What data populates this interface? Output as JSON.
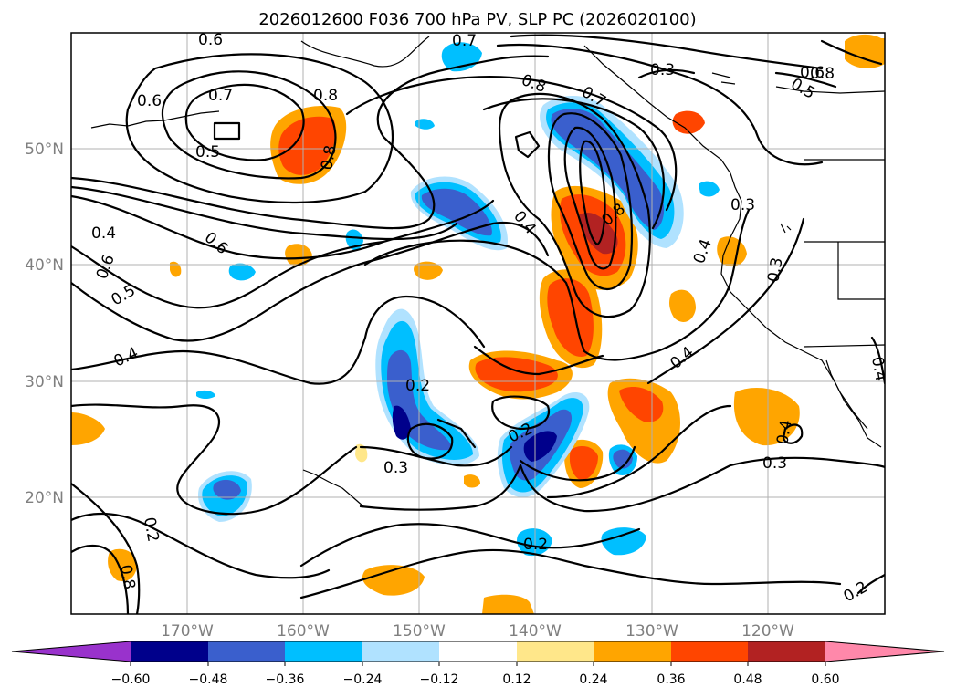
{
  "title": "2026012600 F036 700 hPa PV, SLP PC (2026020100)",
  "axes": {
    "lon_ticks": [
      "170°W",
      "160°W",
      "150°W",
      "140°W",
      "130°W",
      "120°W"
    ],
    "lat_ticks": [
      "50°N",
      "40°N",
      "30°N",
      "20°N"
    ]
  },
  "colorbar": {
    "ticks": [
      "−0.60",
      "−0.48",
      "−0.36",
      "−0.24",
      "−0.12",
      "0.12",
      "0.24",
      "0.36",
      "0.48",
      "0.60"
    ],
    "colors": [
      "#9932cc",
      "#00008b",
      "#3a5fcd",
      "#00bfff",
      "#b0e2ff",
      "#ffffff",
      "#ffe78a",
      "#ffa500",
      "#ff4500",
      "#b22222",
      "#ff88aa"
    ]
  },
  "contour_labels": [
    "0.6",
    "0.7",
    "0.8",
    "0.6",
    "0.7",
    "0.8",
    "0.5",
    "0.8",
    "0.7",
    "0.8",
    "0.3",
    "0.6",
    "0.5",
    "0.4",
    "0.6",
    "0.5",
    "0.6",
    "0.4",
    "0.8",
    "0.4",
    "0.3",
    "0.3",
    "0.4",
    "0.4",
    "0.2",
    "0.3",
    "0.2",
    "0.4",
    "0.3",
    "0.2",
    "0.2",
    "0.8",
    "0.2",
    "0.4"
  ],
  "chart_data": {
    "type": "heatmap",
    "title": "2026012600 F036 700 hPa PV, SLP PC (2026020100)",
    "xlabel": "",
    "ylabel": "",
    "x_tick_labels": [
      "170°W",
      "160°W",
      "150°W",
      "140°W",
      "130°W",
      "120°W"
    ],
    "y_tick_labels": [
      "50°N",
      "40°N",
      "30°N",
      "20°N"
    ],
    "xlim": [
      -180,
      -110
    ],
    "ylim": [
      10,
      60
    ],
    "grid": true,
    "colorbar_levels": [
      -0.6,
      -0.48,
      -0.36,
      -0.24,
      -0.12,
      0.12,
      0.24,
      0.36,
      0.48,
      0.6
    ],
    "filled_anomalies": [
      {
        "lon": -160,
        "lat": 51,
        "value": 0.4
      },
      {
        "lon": -136,
        "lat": 43,
        "value": 0.5
      },
      {
        "lon": -135,
        "lat": 35,
        "value": 0.45
      },
      {
        "lon": -141,
        "lat": 30.5,
        "value": 0.4
      },
      {
        "lon": -131,
        "lat": 29,
        "value": 0.4
      },
      {
        "lon": -135,
        "lat": 22.5,
        "value": 0.4
      },
      {
        "lon": -130,
        "lat": 50,
        "value": -0.45
      },
      {
        "lon": -147,
        "lat": 45,
        "value": -0.45
      },
      {
        "lon": -150,
        "lat": 28,
        "value": -0.55
      },
      {
        "lon": -138,
        "lat": 24,
        "value": -0.55
      },
      {
        "lon": -166,
        "lat": 20,
        "value": -0.4
      },
      {
        "lon": -120,
        "lat": 27.5,
        "value": 0.3
      }
    ],
    "contour_levels": [
      0.2,
      0.3,
      0.4,
      0.5,
      0.6,
      0.7,
      0.8
    ]
  }
}
